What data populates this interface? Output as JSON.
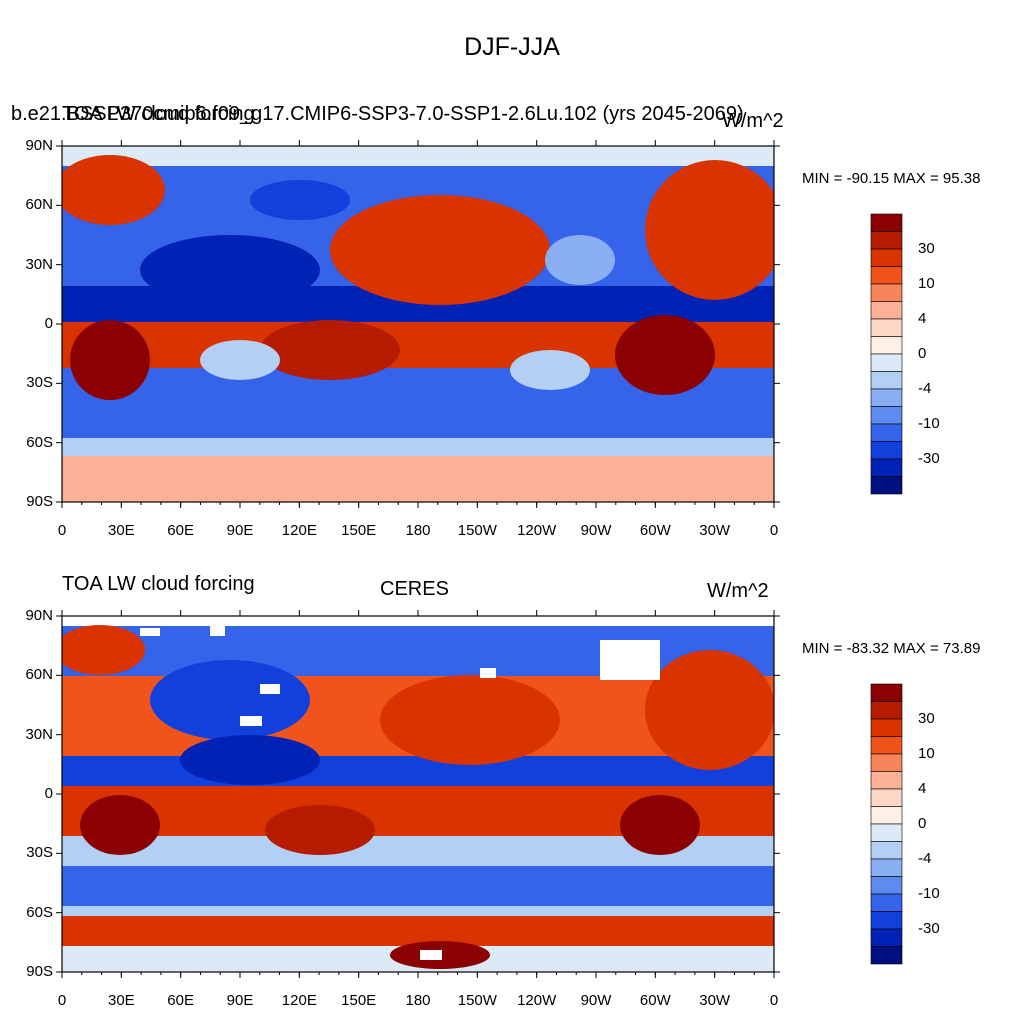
{
  "title": "DJF-JJA",
  "panels": [
    {
      "left_label": "TOA LW cloud forcing",
      "left_label_overlay": "b.e21.BSSP370cmip6.f09_g17.CMIP6-SSP3-7.0-SSP1-2.6Lu.102 (yrs 2045-2069)",
      "center_label": "",
      "right_label": "W/m^2",
      "minmax": "MIN = -90.15 MAX =  95.38"
    },
    {
      "left_label": "TOA LW cloud forcing",
      "left_label_overlay": "",
      "center_label": "CERES",
      "right_label": "W/m^2",
      "minmax": "MIN = -83.32 MAX =  73.89"
    }
  ],
  "lat_ticks": [
    "90N",
    "60N",
    "30N",
    "0",
    "30S",
    "60S",
    "90S"
  ],
  "lon_ticks": [
    "0",
    "30E",
    "60E",
    "90E",
    "120E",
    "150E",
    "180",
    "150W",
    "120W",
    "90W",
    "60W",
    "30W",
    "0"
  ],
  "colorbar": {
    "labels": [
      "30",
      "10",
      "4",
      "0",
      "-4",
      "-10",
      "-30"
    ],
    "colors": [
      "#8b0000",
      "#b51b00",
      "#d93300",
      "#f0541c",
      "#f7855a",
      "#fbb195",
      "#fdd8c5",
      "#fff0e6",
      "#dce9f7",
      "#b3cff4",
      "#89aef1",
      "#5e8bee",
      "#3563ea",
      "#1140dd",
      "#0022b5",
      "#000f80"
    ]
  },
  "legend_colors": {
    "strong_pos": "#8b0000",
    "pos": "#d93300",
    "weak_pos": "#fbb195",
    "weak_neg": "#b3cff4",
    "neg": "#3563ea",
    "strong_neg": "#0022b5"
  }
}
